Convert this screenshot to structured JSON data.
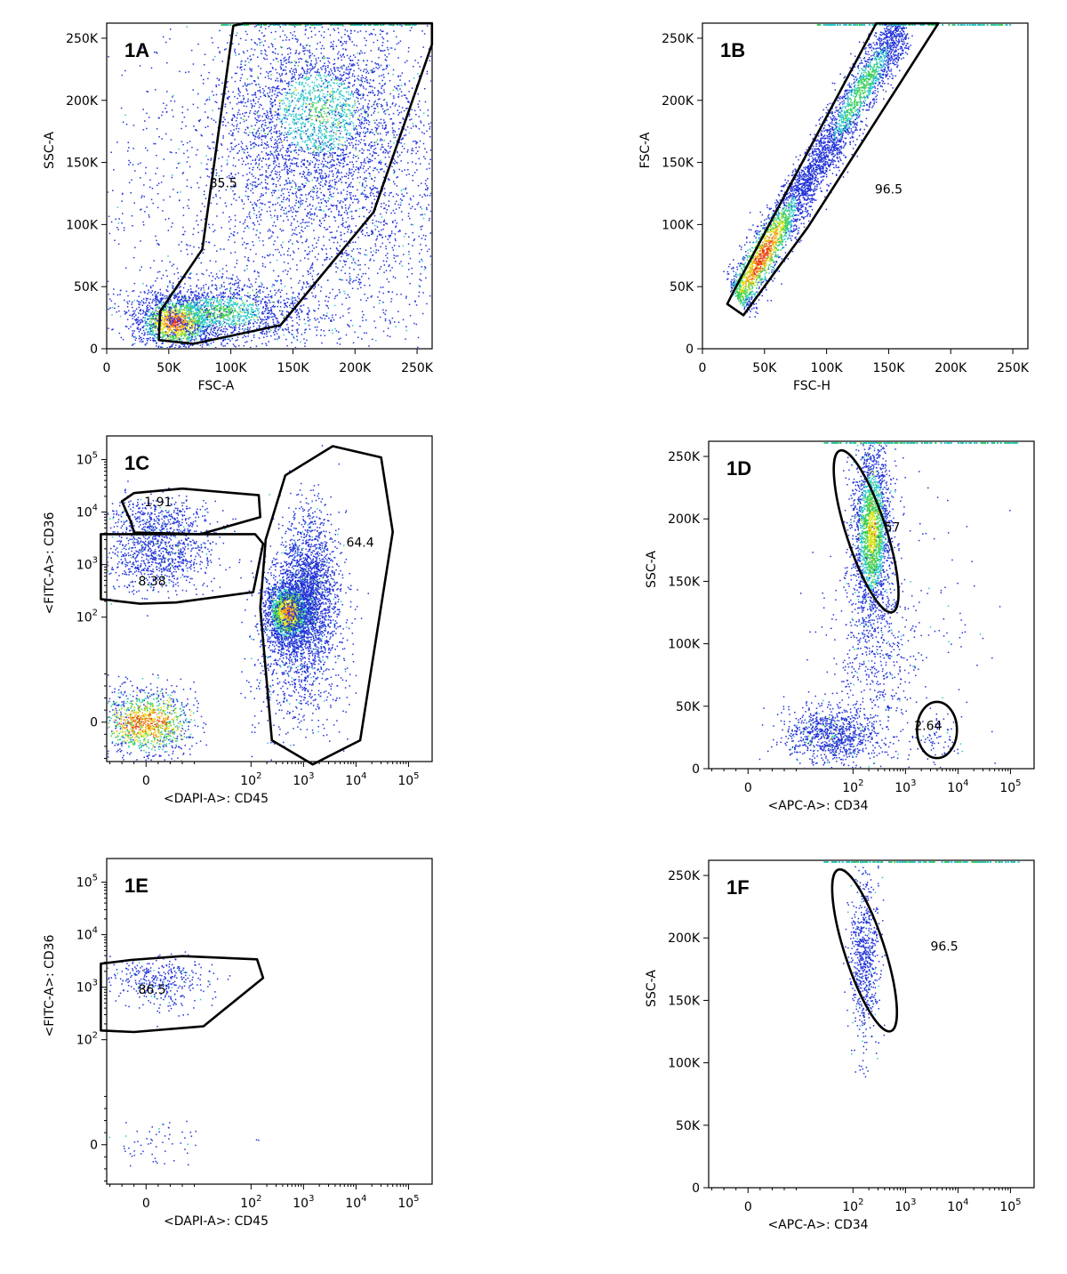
{
  "chart_data": [
    {
      "id": "1A",
      "type": "scatter",
      "panel_label": "1A",
      "xlabel": "FSC-A",
      "ylabel": "SSC-A",
      "xscale": "linear",
      "yscale": "linear",
      "xlim": [
        0,
        262144
      ],
      "ylim": [
        0,
        262144
      ],
      "xticks": [
        {
          "v": 0,
          "t": "0"
        },
        {
          "v": 50000,
          "t": "50K"
        },
        {
          "v": 100000,
          "t": "100K"
        },
        {
          "v": 150000,
          "t": "150K"
        },
        {
          "v": 200000,
          "t": "200K"
        },
        {
          "v": 250000,
          "t": "250K"
        }
      ],
      "yticks": [
        {
          "v": 0,
          "t": "0"
        },
        {
          "v": 50000,
          "t": "50K"
        },
        {
          "v": 100000,
          "t": "100K"
        },
        {
          "v": 150000,
          "t": "150K"
        },
        {
          "v": 200000,
          "t": "200K"
        },
        {
          "v": 250000,
          "t": "250K"
        }
      ],
      "gates": [
        {
          "label": "85.5",
          "shape": "polygon",
          "label_at": [
            94000,
            130000
          ],
          "points": [
            [
              43000,
              30000
            ],
            [
              42000,
              7000
            ],
            [
              70000,
              4000
            ],
            [
              140000,
              19000
            ],
            [
              215000,
              110000
            ],
            [
              262000,
              245000
            ],
            [
              262000,
              262000
            ],
            [
              110000,
              262000
            ],
            [
              102000,
              260000
            ],
            [
              77000,
              80000
            ]
          ]
        }
      ],
      "populations": [
        {
          "cx": 55000,
          "cy": 22000,
          "sx": 16000,
          "sy": 11000,
          "n": 1400,
          "hot": 1
        },
        {
          "cx": 90000,
          "cy": 30000,
          "sx": 35000,
          "sy": 12000,
          "n": 1500,
          "hot": 0.5
        },
        {
          "cx": 170000,
          "cy": 190000,
          "sx": 38000,
          "sy": 38000,
          "n": 2600,
          "hot": 0.45
        },
        {
          "cx": 200000,
          "cy": 110000,
          "sx": 50000,
          "sy": 60000,
          "n": 1500,
          "hot": 0.1
        },
        {
          "cx": 110000,
          "cy": 120000,
          "sx": 60000,
          "sy": 70000,
          "n": 1100,
          "hot": 0.05
        }
      ]
    },
    {
      "id": "1B",
      "type": "scatter",
      "panel_label": "1B",
      "xlabel": "FSC-H",
      "ylabel": "FSC-A",
      "xscale": "linear",
      "yscale": "linear",
      "xlim": [
        0,
        262144
      ],
      "ylim": [
        0,
        262144
      ],
      "xticks": [
        {
          "v": 0,
          "t": "0"
        },
        {
          "v": 50000,
          "t": "50K"
        },
        {
          "v": 100000,
          "t": "100K"
        },
        {
          "v": 150000,
          "t": "150K"
        },
        {
          "v": 200000,
          "t": "200K"
        },
        {
          "v": 250000,
          "t": "250K"
        }
      ],
      "yticks": [
        {
          "v": 0,
          "t": "0"
        },
        {
          "v": 50000,
          "t": "50K"
        },
        {
          "v": 100000,
          "t": "100K"
        },
        {
          "v": 150000,
          "t": "150K"
        },
        {
          "v": 200000,
          "t": "200K"
        },
        {
          "v": 250000,
          "t": "250K"
        }
      ],
      "gates": [
        {
          "label": "96.5",
          "shape": "polygon",
          "label_at": [
            150000,
            125000
          ],
          "points": [
            [
              20000,
              36000
            ],
            [
              25000,
              46000
            ],
            [
              140000,
              262000
            ],
            [
              190000,
              262000
            ],
            [
              85000,
              98000
            ],
            [
              33000,
              27000
            ]
          ]
        }
      ],
      "diagonal": {
        "x0": 28000,
        "y0": 42000,
        "x1": 160000,
        "y1": 262000,
        "width": 6500,
        "n": 4200
      }
    },
    {
      "id": "1C",
      "type": "scatter",
      "panel_label": "1C",
      "xlabel": "<DAPI-A>: CD45",
      "ylabel": "<FITC-A>: CD36",
      "xscale": "biexp",
      "yscale": "biexp",
      "xlim": [
        -80,
        262144
      ],
      "ylim": [
        -80,
        262144
      ],
      "xticks": [
        {
          "v": 0,
          "t": "0",
          "m": false
        },
        {
          "v": 100,
          "t": "10",
          "e": "2"
        },
        {
          "v": 1000,
          "t": "10",
          "e": "3"
        },
        {
          "v": 10000,
          "t": "10",
          "e": "4"
        },
        {
          "v": 100000,
          "t": "10",
          "e": "5"
        }
      ],
      "yticks": [
        {
          "v": 0,
          "t": "0"
        },
        {
          "v": 100,
          "t": "10",
          "e": "2"
        },
        {
          "v": 1000,
          "t": "10",
          "e": "3"
        },
        {
          "v": 10000,
          "t": "10",
          "e": "4"
        },
        {
          "v": 100000,
          "t": "10",
          "e": "5"
        }
      ],
      "gates": [
        {
          "label": "1.91",
          "shape": "polygon",
          "label_at": [
            20,
            13000
          ],
          "points": [
            [
              -25,
              6500
            ],
            [
              -40,
              16000
            ],
            [
              -20,
              23000
            ],
            [
              60,
              28000
            ],
            [
              140,
              21000
            ],
            [
              150,
              8000
            ],
            [
              90,
              3800
            ],
            [
              -20,
              4100
            ]
          ]
        },
        {
          "label": "8.38",
          "shape": "polygon",
          "label_at": [
            10,
            400
          ],
          "points": [
            [
              -75,
              3800
            ],
            [
              120,
              3800
            ],
            [
              170,
              2500
            ],
            [
              110,
              300
            ],
            [
              50,
              190
            ],
            [
              -10,
              180
            ],
            [
              -75,
              220
            ]
          ]
        },
        {
          "label": "64.4",
          "shape": "polygon",
          "label_at": [
            12000,
            2200
          ],
          "points": [
            [
              190,
              3000
            ],
            [
              450,
              50000
            ],
            [
              3600,
              180000
            ],
            [
              30000,
              110000
            ],
            [
              50000,
              4200
            ],
            [
              12000,
              -30
            ],
            [
              1500,
              -70
            ],
            [
              250,
              -30
            ],
            [
              150,
              150
            ]
          ]
        }
      ],
      "populations": [
        {
          "lx": 0,
          "ly": 0,
          "sx": 0.35,
          "sy": 0.28,
          "n": 1200,
          "hot": 1,
          "lin": true,
          "fx": [
            -30,
            30
          ],
          "fy": [
            -10,
            10
          ]
        },
        {
          "lx": 2.7,
          "ly": 2.1,
          "sx": 0.22,
          "sy": 0.3,
          "n": 1900,
          "hot": 0.9
        },
        {
          "lx": 3.1,
          "ly": 2.6,
          "sx": 0.28,
          "sy": 0.7,
          "n": 1700,
          "hot": 0.2
        },
        {
          "lx": 2.9,
          "ly": 1.5,
          "sx": 0.4,
          "sy": 0.8,
          "n": 1100,
          "hot": 0.05
        },
        {
          "lx": 0.2,
          "ly": 3.2,
          "sx": 0.55,
          "sy": 0.35,
          "n": 900,
          "hot": 0.2
        },
        {
          "lx": 0.2,
          "ly": 3.9,
          "sx": 0.55,
          "sy": 0.22,
          "n": 350,
          "hot": 0.05
        }
      ]
    },
    {
      "id": "1D",
      "type": "scatter",
      "panel_label": "1D",
      "xlabel": "<APC-A>: CD34",
      "ylabel": "SSC-A",
      "xscale": "biexp",
      "yscale": "linear",
      "xlim": [
        -80,
        262144
      ],
      "ylim": [
        0,
        262144
      ],
      "xticks": [
        {
          "v": 0,
          "t": "0"
        },
        {
          "v": 100,
          "t": "10",
          "e": "2"
        },
        {
          "v": 1000,
          "t": "10",
          "e": "3"
        },
        {
          "v": 10000,
          "t": "10",
          "e": "4"
        },
        {
          "v": 100000,
          "t": "10",
          "e": "5"
        }
      ],
      "yticks": [
        {
          "v": 0,
          "t": "0"
        },
        {
          "v": 50000,
          "t": "50K"
        },
        {
          "v": 100000,
          "t": "100K"
        },
        {
          "v": 150000,
          "t": "150K"
        },
        {
          "v": 200000,
          "t": "200K"
        },
        {
          "v": 250000,
          "t": "250K"
        }
      ],
      "gates": [
        {
          "label": "57",
          "shape": "ellipse",
          "label_at": [
            560,
            190000
          ],
          "center": [
            2.25,
            190000
          ],
          "rx": 0.38,
          "ry": 68000,
          "angle": -18
        },
        {
          "label": "2.64",
          "shape": "ellipse",
          "label_at": [
            2700,
            31000
          ],
          "center": [
            3.6,
            31000
          ],
          "rx": 0.38,
          "ry": 22500,
          "angle": 0
        }
      ],
      "populations": [
        {
          "lx": 2.35,
          "ly": 190000,
          "sx": 0.18,
          "sy": 35000,
          "n": 2200,
          "hot": 0.7,
          "ylin": true
        },
        {
          "lx": 1.6,
          "ly": 27000,
          "sx": 0.45,
          "sy": 11000,
          "n": 900,
          "hot": 0.3,
          "ylin": true
        },
        {
          "lx": 2.4,
          "ly": 90000,
          "sx": 0.4,
          "sy": 35000,
          "n": 450,
          "hot": 0,
          "ylin": true
        },
        {
          "lx": 3.6,
          "ly": 25000,
          "sx": 0.25,
          "sy": 8000,
          "n": 70,
          "hot": 0,
          "ylin": true
        },
        {
          "lx": 2.8,
          "ly": 100000,
          "sx": 0.9,
          "sy": 80000,
          "n": 180,
          "hot": 0,
          "ylin": true
        }
      ]
    },
    {
      "id": "1E",
      "type": "scatter",
      "panel_label": "1E",
      "xlabel": "<DAPI-A>: CD45",
      "ylabel": "<FITC-A>: CD36",
      "xscale": "biexp",
      "yscale": "biexp",
      "xlim": [
        -80,
        262144
      ],
      "ylim": [
        -80,
        262144
      ],
      "xticks": [
        {
          "v": 0,
          "t": "0"
        },
        {
          "v": 100,
          "t": "10",
          "e": "2"
        },
        {
          "v": 1000,
          "t": "10",
          "e": "3"
        },
        {
          "v": 10000,
          "t": "10",
          "e": "4"
        },
        {
          "v": 100000,
          "t": "10",
          "e": "5"
        }
      ],
      "yticks": [
        {
          "v": 0,
          "t": "0"
        },
        {
          "v": 100,
          "t": "10",
          "e": "2"
        },
        {
          "v": 1000,
          "t": "10",
          "e": "3"
        },
        {
          "v": 10000,
          "t": "10",
          "e": "4"
        },
        {
          "v": 100000,
          "t": "10",
          "e": "5"
        }
      ],
      "gates": [
        {
          "label": "86.5",
          "shape": "polygon",
          "label_at": [
            10,
            750
          ],
          "points": [
            [
              -75,
              2800
            ],
            [
              -25,
              3300
            ],
            [
              60,
              3900
            ],
            [
              130,
              3400
            ],
            [
              170,
              1500
            ],
            [
              95,
              180
            ],
            [
              -20,
              140
            ],
            [
              -75,
              150
            ]
          ]
        }
      ],
      "populations": [
        {
          "lx": 0.2,
          "ly": 3.2,
          "sx": 0.45,
          "sy": 0.18,
          "n": 300,
          "hot": 0
        },
        {
          "lx": 0.2,
          "ly": 2.8,
          "sx": 0.45,
          "sy": 0.18,
          "n": 60,
          "hot": 0
        },
        {
          "lx": 0.1,
          "ly": 0,
          "sx": 0.35,
          "sy": 0,
          "n": 60,
          "hot": 0,
          "lin": true,
          "fx": [
            -40,
            40
          ],
          "fy": [
            -35,
            40
          ]
        },
        {
          "lx": 2.4,
          "ly": 0,
          "sx": 0.5,
          "sy": 0,
          "n": 6,
          "hot": 0,
          "lin": true,
          "fx": [
            -10,
            10
          ],
          "fy": [
            -10,
            10
          ]
        }
      ]
    },
    {
      "id": "1F",
      "type": "scatter",
      "panel_label": "1F",
      "xlabel": "<APC-A>: CD34",
      "ylabel": "SSC-A",
      "xscale": "biexp",
      "yscale": "linear",
      "xlim": [
        -80,
        262144
      ],
      "ylim": [
        0,
        262144
      ],
      "xticks": [
        {
          "v": 0,
          "t": "0"
        },
        {
          "v": 100,
          "t": "10",
          "e": "2"
        },
        {
          "v": 1000,
          "t": "10",
          "e": "3"
        },
        {
          "v": 10000,
          "t": "10",
          "e": "4"
        },
        {
          "v": 100000,
          "t": "10",
          "e": "5"
        }
      ],
      "yticks": [
        {
          "v": 0,
          "t": "0"
        },
        {
          "v": 50000,
          "t": "50K"
        },
        {
          "v": 100000,
          "t": "100K"
        },
        {
          "v": 150000,
          "t": "150K"
        },
        {
          "v": 200000,
          "t": "200K"
        },
        {
          "v": 250000,
          "t": "250K"
        }
      ],
      "gates": [
        {
          "label": "96.5",
          "shape": "polygon",
          "label_at": [
            5500,
            190000
          ],
          "points": []
        },
        {
          "label": "",
          "shape": "ellipse",
          "center": [
            2.22,
            190000
          ],
          "rx": 0.38,
          "ry": 68000,
          "angle": -18
        }
      ],
      "populations": [
        {
          "lx": 2.2,
          "ly": 185000,
          "sx": 0.14,
          "sy": 30000,
          "n": 650,
          "hot": 0,
          "ylin": true
        },
        {
          "lx": 2.2,
          "ly": 100000,
          "sx": 0.15,
          "sy": 8000,
          "n": 12,
          "hot": 0,
          "ylin": true
        }
      ]
    }
  ]
}
